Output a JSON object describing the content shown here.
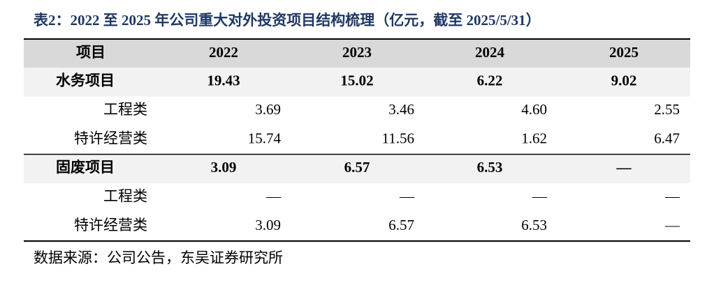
{
  "title": "表2：2022 至 2025 年公司重大对外投资项目结构梳理（亿元，截至 2025/5/31）",
  "table": {
    "header": [
      "项目",
      "2022",
      "2023",
      "2024",
      "2025"
    ],
    "groups": [
      {
        "label": "水务项目",
        "values": [
          "19.43",
          "15.02",
          "6.22",
          "9.02"
        ],
        "items": [
          {
            "label": "工程类",
            "values": [
              "3.69",
              "3.46",
              "4.60",
              "2.55"
            ]
          },
          {
            "label": "特许经营类",
            "values": [
              "15.74",
              "11.56",
              "1.62",
              "6.47"
            ]
          }
        ]
      },
      {
        "label": "固废项目",
        "values": [
          "3.09",
          "6.57",
          "6.53",
          "—"
        ],
        "items": [
          {
            "label": "工程类",
            "values": [
              "—",
              "—",
              "—",
              "—"
            ]
          },
          {
            "label": "特许经营类",
            "values": [
              "3.09",
              "6.57",
              "6.53",
              "—"
            ]
          }
        ]
      }
    ]
  },
  "source": "数据来源：公司公告，东吴证券研究所"
}
